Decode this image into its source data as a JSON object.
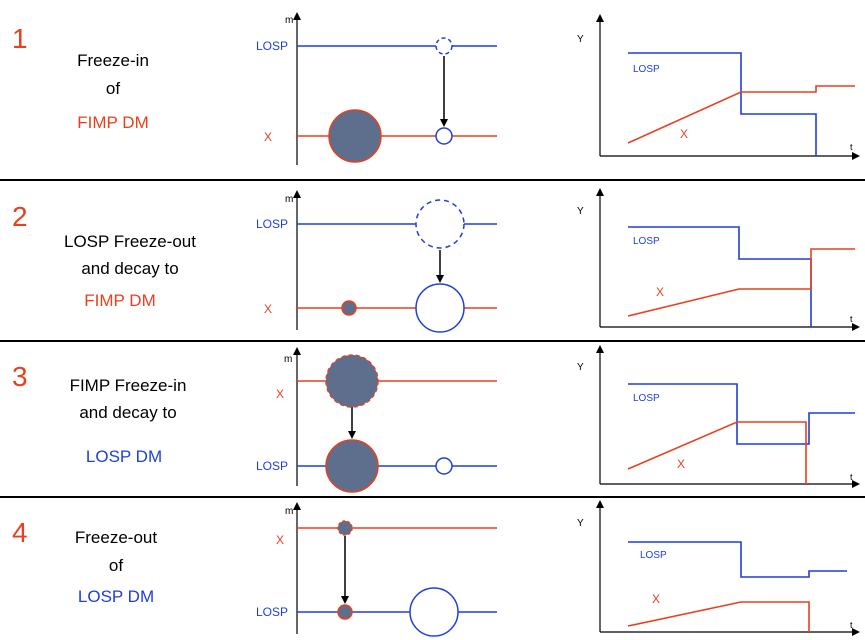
{
  "colors": {
    "red": "#ea3f1e",
    "blue": "#1f3fd6",
    "dark": "#000000",
    "particle": "#5d6f8c"
  },
  "panels": [
    {
      "number": "1",
      "title_lines": [
        {
          "text": "Freeze-in",
          "color": "dark"
        },
        {
          "text": "of",
          "color": "dark"
        },
        {
          "text": "FIMP DM",
          "color": "red"
        }
      ],
      "mass_axis_label": "m",
      "mass_levels": [
        {
          "label": "LOSP",
          "color": "blue"
        },
        {
          "label": "X",
          "color": "red"
        }
      ],
      "abundance_axis_label": "Y",
      "time_axis_label": "t",
      "curve_labels": [
        {
          "label": "LOSP",
          "color": "blue"
        },
        {
          "label": "X",
          "color": "red"
        }
      ]
    },
    {
      "number": "2",
      "title_lines": [
        {
          "text": "LOSP Freeze-out",
          "color": "dark"
        },
        {
          "text": "and decay to",
          "color": "dark"
        },
        {
          "text": "FIMP DM",
          "color": "red"
        }
      ],
      "mass_axis_label": "m",
      "mass_levels": [
        {
          "label": "LOSP",
          "color": "blue"
        },
        {
          "label": "X",
          "color": "red"
        }
      ],
      "abundance_axis_label": "Y",
      "time_axis_label": "t",
      "curve_labels": [
        {
          "label": "LOSP",
          "color": "blue"
        },
        {
          "label": "X",
          "color": "red"
        }
      ]
    },
    {
      "number": "3",
      "title_lines": [
        {
          "text": "FIMP Freeze-in",
          "color": "dark"
        },
        {
          "text": "and decay to",
          "color": "dark"
        },
        {
          "text": "LOSP DM",
          "color": "blue"
        }
      ],
      "mass_axis_label": "m",
      "mass_levels": [
        {
          "label": "X",
          "color": "red"
        },
        {
          "label": "LOSP",
          "color": "blue"
        }
      ],
      "abundance_axis_label": "Y",
      "time_axis_label": "t",
      "curve_labels": [
        {
          "label": "LOSP",
          "color": "blue"
        },
        {
          "label": "X",
          "color": "red"
        }
      ]
    },
    {
      "number": "4",
      "title_lines": [
        {
          "text": "Freeze-out",
          "color": "dark"
        },
        {
          "text": "of",
          "color": "dark"
        },
        {
          "text": "LOSP DM",
          "color": "blue"
        }
      ],
      "mass_axis_label": "m",
      "mass_levels": [
        {
          "label": "X",
          "color": "red"
        },
        {
          "label": "LOSP",
          "color": "blue"
        }
      ],
      "abundance_axis_label": "Y",
      "time_axis_label": "t",
      "curve_labels": [
        {
          "label": "LOSP",
          "color": "blue"
        },
        {
          "label": "X",
          "color": "red"
        }
      ]
    }
  ]
}
